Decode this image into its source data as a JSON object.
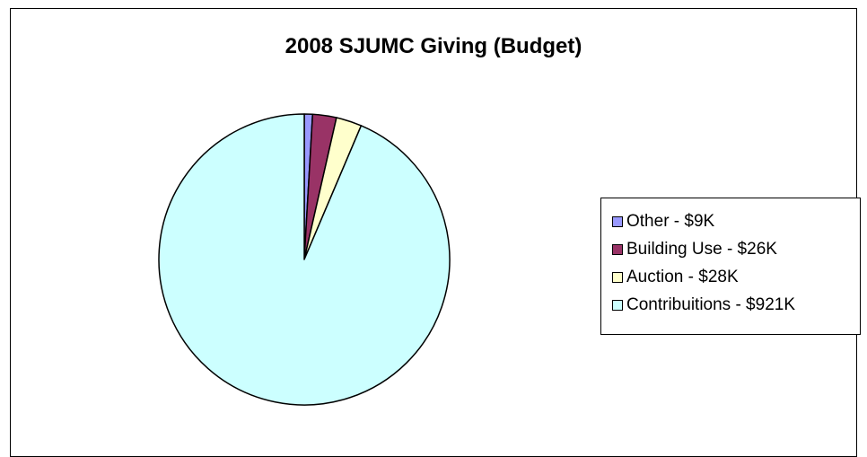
{
  "chart_data": {
    "type": "pie",
    "title": "2008 SJUMC Giving (Budget)",
    "slices": [
      {
        "label": "Other - $9K",
        "value": 9,
        "color": "#9999ff"
      },
      {
        "label": "Building Use - $26K",
        "value": 26,
        "color": "#993366"
      },
      {
        "label": "Auction - $28K",
        "value": 28,
        "color": "#ffffcc"
      },
      {
        "label": "Contribuitions - $921K",
        "value": 921,
        "color": "#ccffff"
      }
    ],
    "start_angle": "12 o'clock",
    "direction": "clockwise",
    "legend_position": "right"
  }
}
